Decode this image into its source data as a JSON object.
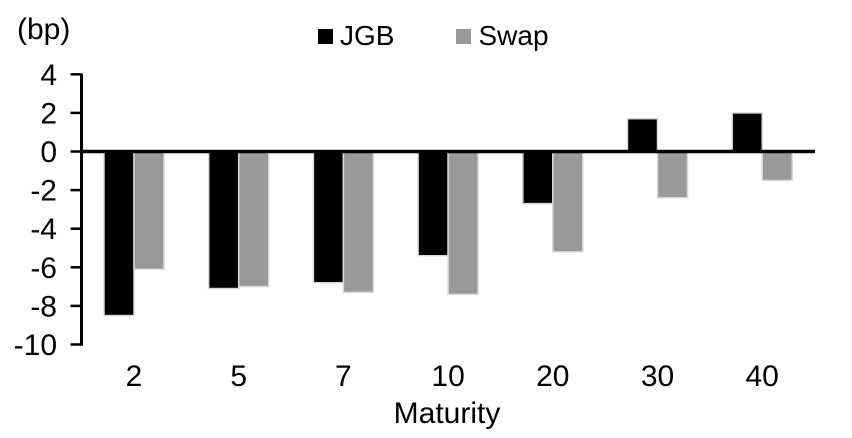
{
  "chart_data": {
    "type": "bar",
    "title": "",
    "unit_label": "(bp)",
    "xlabel": "Maturity",
    "ylabel": "",
    "categories": [
      "2",
      "5",
      "7",
      "10",
      "20",
      "30",
      "40"
    ],
    "series": [
      {
        "name": "JGB",
        "color": "#000000",
        "values": [
          -8.5,
          -7.1,
          -6.8,
          -5.4,
          -2.7,
          1.7,
          2.0
        ]
      },
      {
        "name": "Swap",
        "color": "#999999",
        "values": [
          -6.1,
          -7.0,
          -7.3,
          -7.4,
          -5.2,
          -2.4,
          -1.5
        ]
      }
    ],
    "ylim": [
      -10,
      4
    ],
    "yticks": [
      4,
      2,
      0,
      -2,
      -4,
      -6,
      -8,
      -10
    ],
    "grid": false,
    "legend_position": "top-center",
    "axis_color": "#000000",
    "bar_border_color": "#d9d9d9"
  }
}
